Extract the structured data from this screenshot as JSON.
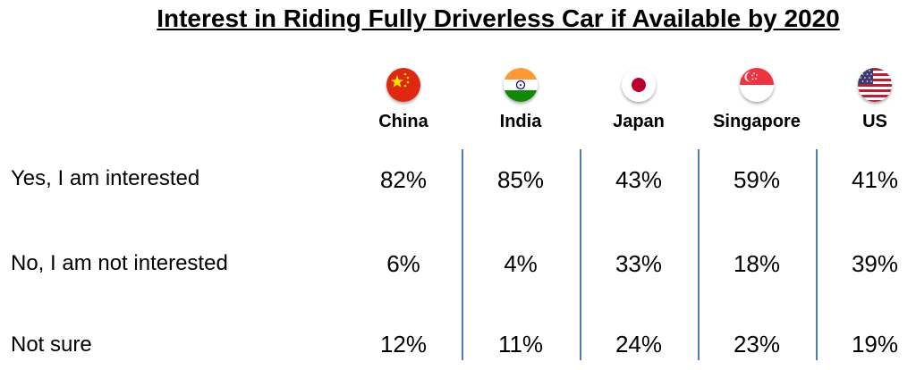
{
  "title": "Interest in Riding Fully Driverless Car if Available by 2020",
  "columns": [
    {
      "label": "China",
      "flag": "china-flag-icon"
    },
    {
      "label": "India",
      "flag": "india-flag-icon"
    },
    {
      "label": "Japan",
      "flag": "japan-flag-icon"
    },
    {
      "label": "Singapore",
      "flag": "singapore-flag-icon"
    },
    {
      "label": "US",
      "flag": "us-flag-icon"
    }
  ],
  "rows": [
    {
      "label": "Yes, I am interested",
      "values": [
        "82%",
        "85%",
        "43%",
        "59%",
        "41%"
      ]
    },
    {
      "label": "No, I am not interested",
      "values": [
        "6%",
        "4%",
        "33%",
        "18%",
        "39%"
      ]
    },
    {
      "label": "Not sure",
      "values": [
        "12%",
        "11%",
        "24%",
        "23%",
        "19%"
      ]
    }
  ],
  "colors": {
    "divider": "#4f7eb0"
  },
  "chart_data": {
    "type": "table",
    "title": "Interest in Riding Fully Driverless Car if Available by 2020",
    "categories": [
      "China",
      "India",
      "Japan",
      "Singapore",
      "US"
    ],
    "series": [
      {
        "name": "Yes, I am interested",
        "values": [
          82,
          85,
          43,
          59,
          41
        ]
      },
      {
        "name": "No, I am not interested",
        "values": [
          6,
          4,
          33,
          18,
          39
        ]
      },
      {
        "name": "Not sure",
        "values": [
          12,
          11,
          24,
          23,
          19
        ]
      }
    ]
  }
}
